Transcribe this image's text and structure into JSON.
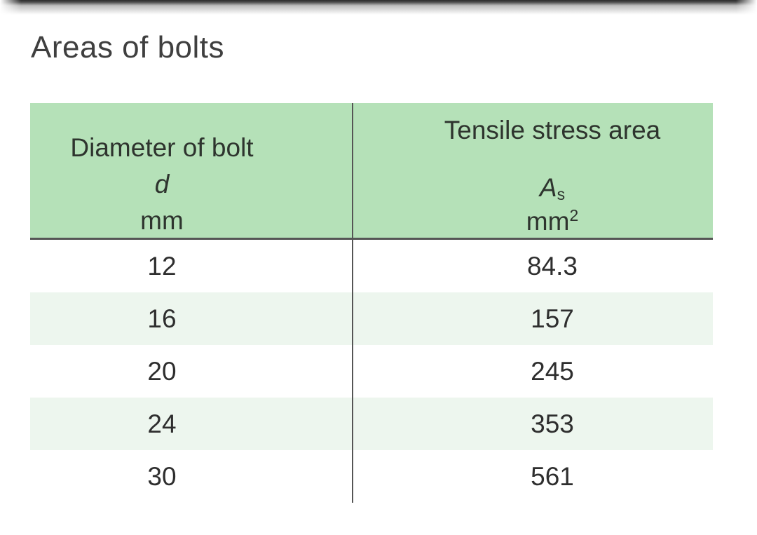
{
  "page": {
    "title": "Areas of bolts"
  },
  "table": {
    "header": {
      "col1": {
        "line1": "Diameter of bolt",
        "symbol": "d",
        "unit": "mm"
      },
      "col2": {
        "line1": "Tensile stress area",
        "symbol": "A",
        "symbol_sub": "s",
        "unit": "mm",
        "unit_sup": "2"
      }
    },
    "rows": [
      {
        "d": "12",
        "as": "84.3"
      },
      {
        "d": "16",
        "as": "157"
      },
      {
        "d": "20",
        "as": "245"
      },
      {
        "d": "24",
        "as": "353"
      },
      {
        "d": "30",
        "as": "561"
      }
    ]
  },
  "colors": {
    "header_bg": "#b5e1b8",
    "row_alt_bg": "#edf6ee",
    "rule": "#555555",
    "text": "#2e2e2e"
  }
}
